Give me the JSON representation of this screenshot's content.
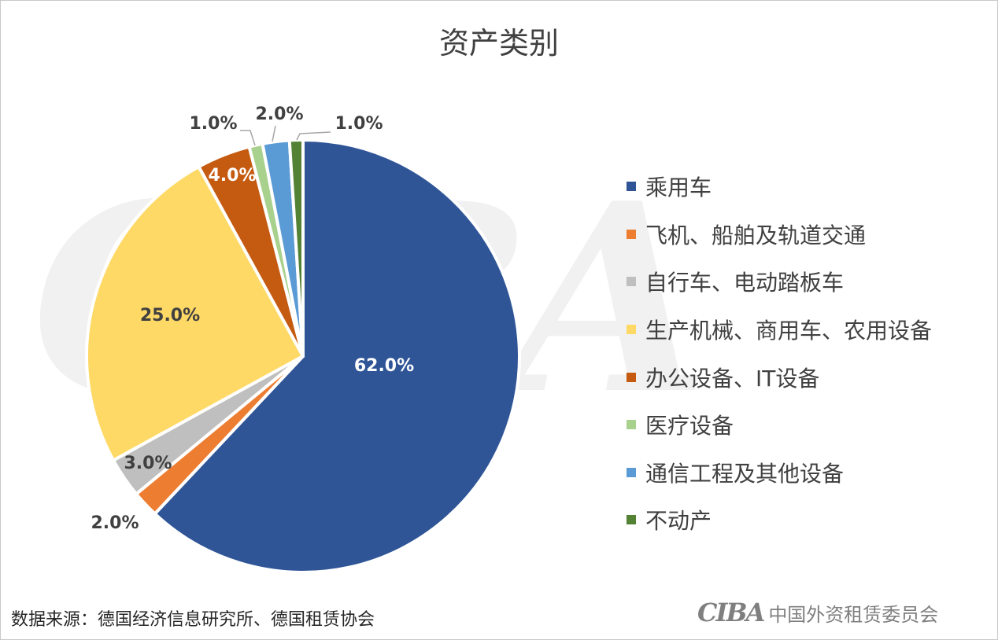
{
  "chart_data": {
    "type": "pie",
    "title": "资产类别",
    "categories": [
      "乘用车",
      "飞机、船舶及轨道交通",
      "自行车、电动踏板车",
      "生产机械、商用车、农用设备",
      "办公设备、IT设备",
      "医疗设备",
      "通信工程及其他设备",
      "不动产"
    ],
    "values": [
      62.0,
      2.0,
      3.0,
      25.0,
      4.0,
      1.0,
      2.0,
      1.0
    ],
    "data_labels": [
      "62.0%",
      "2.0%",
      "3.0%",
      "25.0%",
      "4.0%",
      "1.0%",
      "2.0%",
      "1.0%"
    ],
    "colors": [
      "#2f5597",
      "#ed7d31",
      "#bfbfbf",
      "#ffd966",
      "#c55a11",
      "#a9d18e",
      "#5b9bd5",
      "#548235"
    ],
    "legend_position": "right"
  },
  "watermark": "CIBA",
  "source": "数据来源：德国经济信息研究所、德国租赁协会",
  "footer": {
    "logo": "CIBA",
    "org": "中国外资租赁委员会"
  }
}
